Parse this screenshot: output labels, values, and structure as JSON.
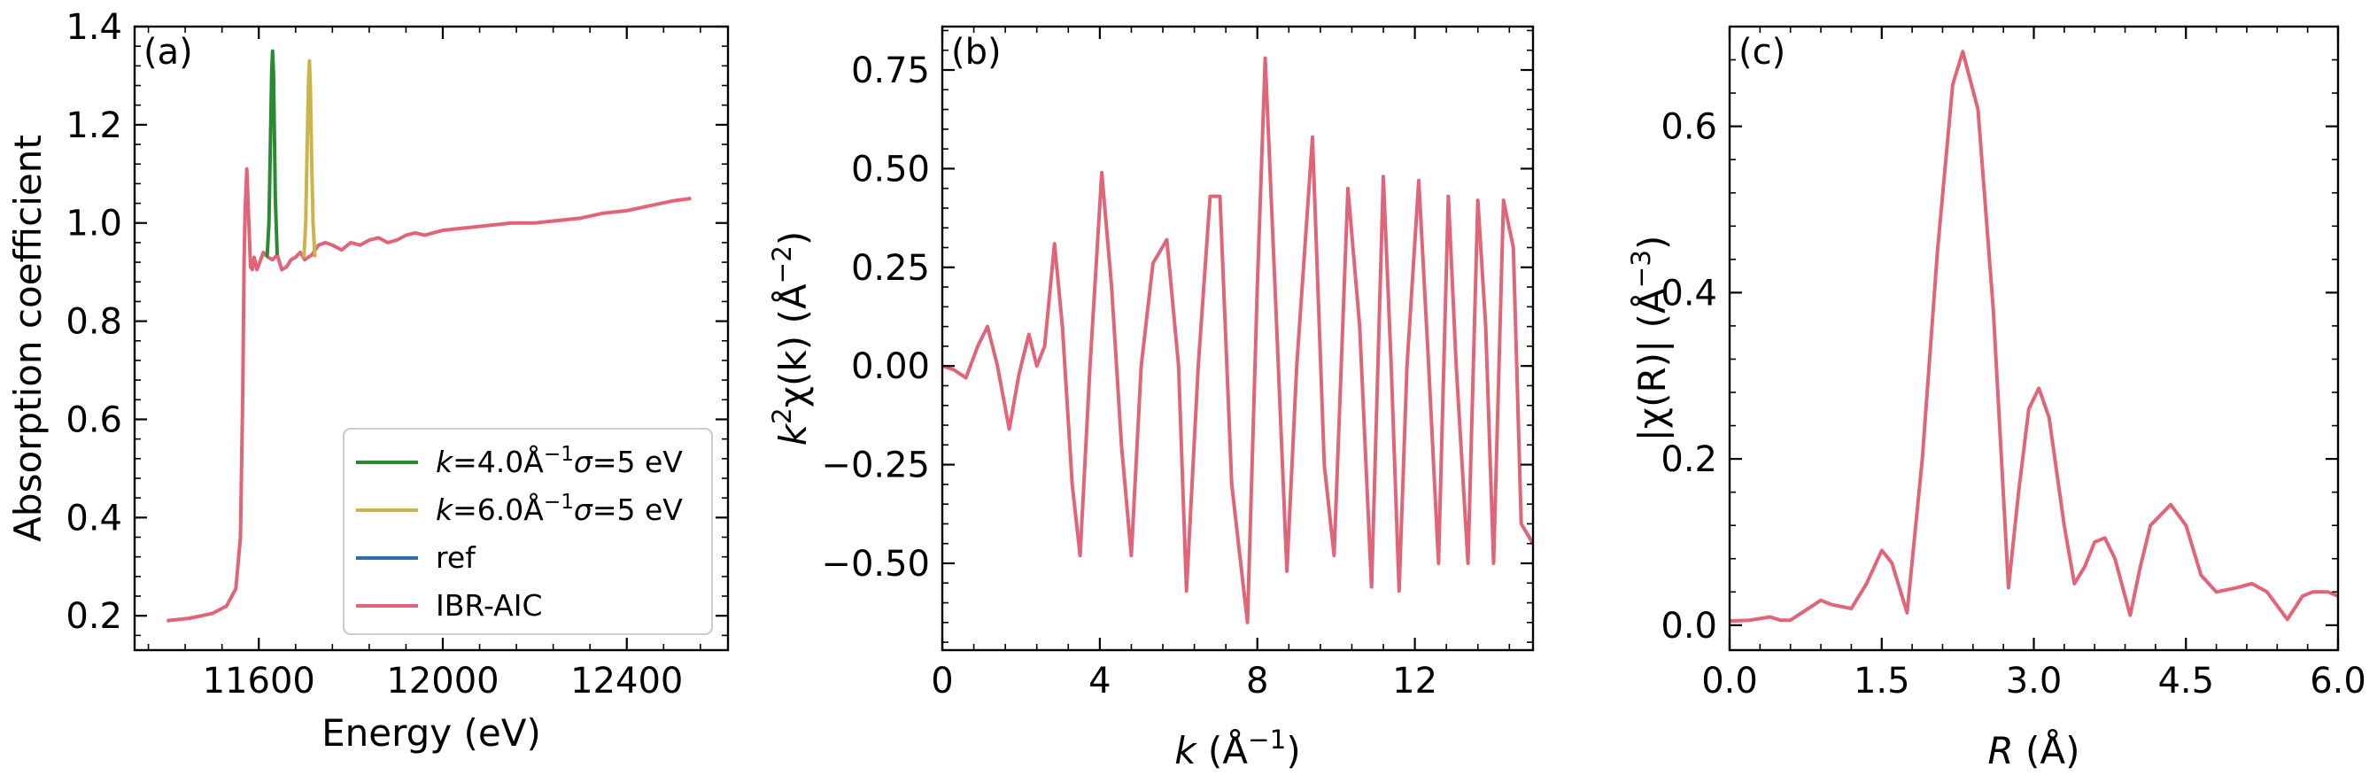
{
  "colors": {
    "green": "#2a8a34",
    "olive": "#cbb54a",
    "blue": "#2e6fad",
    "pink": "#e06579"
  },
  "chart_data": [
    {
      "type": "line",
      "panel": "(a)",
      "xlabel": "Energy (eV)",
      "ylabel": "Absorption coefficient",
      "xlim": [
        11330,
        12620
      ],
      "ylim": [
        0.13,
        1.4
      ],
      "xticks": [
        11600,
        12000,
        12400
      ],
      "xtick_labels": [
        "11600",
        "12000",
        "12400"
      ],
      "yticks": [
        0.2,
        0.4,
        0.6,
        0.8,
        1.0,
        1.2,
        1.4
      ],
      "ytick_labels": [
        "0.2",
        "0.4",
        "0.6",
        "0.8",
        "1.0",
        "1.2",
        "1.4"
      ],
      "legend": {
        "placement": "lower right",
        "entries": [
          {
            "label": "k=4.0Å⁻¹σ=5 eV",
            "color": "#2a8a34",
            "italic_k": true
          },
          {
            "label": "k=6.0Å⁻¹σ=5 eV",
            "color": "#cbb54a",
            "italic_k": true
          },
          {
            "label": "ref",
            "color": "#2e6fad"
          },
          {
            "label": "IBR-AIC",
            "color": "#e06579"
          }
        ]
      },
      "series": [
        {
          "name": "IBR-AIC",
          "color": "#e06579",
          "x": [
            11400,
            11450,
            11500,
            11530,
            11550,
            11560,
            11565,
            11568,
            11570,
            11574,
            11578,
            11582,
            11586,
            11590,
            11596,
            11602,
            11610,
            11620,
            11630,
            11640,
            11650,
            11660,
            11670,
            11680,
            11690,
            11700,
            11715,
            11730,
            11745,
            11760,
            11780,
            11800,
            11820,
            11840,
            11860,
            11880,
            11900,
            11920,
            11940,
            11960,
            11980,
            12000,
            12050,
            12100,
            12150,
            12200,
            12250,
            12300,
            12350,
            12400,
            12450,
            12500,
            12540
          ],
          "y": [
            0.19,
            0.195,
            0.205,
            0.22,
            0.255,
            0.36,
            0.65,
            0.92,
            1.02,
            1.11,
            1.01,
            0.91,
            0.905,
            0.93,
            0.905,
            0.92,
            0.94,
            0.93,
            0.925,
            0.935,
            0.905,
            0.91,
            0.925,
            0.93,
            0.94,
            0.925,
            0.935,
            0.955,
            0.96,
            0.955,
            0.945,
            0.96,
            0.955,
            0.965,
            0.97,
            0.96,
            0.965,
            0.975,
            0.98,
            0.975,
            0.98,
            0.985,
            0.99,
            0.995,
            1.0,
            1.0,
            1.005,
            1.01,
            1.02,
            1.025,
            1.035,
            1.045,
            1.05
          ]
        },
        {
          "name": "k=4.0Å⁻¹σ=5 eV",
          "color": "#2a8a34",
          "x": [
            11618,
            11622,
            11626,
            11628,
            11630,
            11632,
            11636,
            11640
          ],
          "y": [
            0.93,
            1.0,
            1.2,
            1.31,
            1.35,
            1.3,
            1.05,
            0.935
          ]
        },
        {
          "name": "k=6.0Å⁻¹σ=5 eV",
          "color": "#cbb54a",
          "x": [
            11698,
            11702,
            11705,
            11708,
            11710,
            11712,
            11715,
            11718,
            11722
          ],
          "y": [
            0.93,
            1.0,
            1.15,
            1.28,
            1.33,
            1.28,
            1.12,
            1.0,
            0.93
          ]
        }
      ]
    },
    {
      "type": "line",
      "panel": "(b)",
      "xlabel": "k (Å⁻¹)",
      "ylabel": "k²χ(k) (Å⁻²)",
      "xlim": [
        0,
        15
      ],
      "ylim": [
        -0.72,
        0.86
      ],
      "xticks": [
        0,
        4,
        8,
        12
      ],
      "xtick_labels": [
        "0",
        "4",
        "8",
        "12"
      ],
      "yticks": [
        -0.5,
        -0.25,
        0,
        0.25,
        0.5,
        0.75
      ],
      "ytick_labels": [
        "−0.50",
        "−0.25",
        "0.00",
        "0.25",
        "0.50",
        "0.75"
      ],
      "series": [
        {
          "name": "IBR-AIC",
          "color": "#e06579",
          "x": [
            0,
            0.3,
            0.6,
            0.9,
            1.15,
            1.4,
            1.7,
            1.95,
            2.2,
            2.4,
            2.6,
            2.85,
            3.05,
            3.3,
            3.5,
            3.75,
            4.05,
            4.3,
            4.55,
            4.8,
            5.05,
            5.35,
            5.7,
            6.0,
            6.2,
            6.5,
            6.8,
            7.05,
            7.35,
            7.75,
            8.0,
            8.2,
            8.45,
            8.75,
            9.0,
            9.4,
            9.7,
            9.95,
            10.3,
            10.6,
            10.9,
            11.2,
            11.4,
            11.6,
            11.8,
            12.1,
            12.35,
            12.6,
            12.85,
            13.05,
            13.35,
            13.6,
            13.8,
            14.0,
            14.25,
            14.5,
            14.7,
            15.0
          ],
          "y": [
            0,
            -0.01,
            -0.03,
            0.05,
            0.1,
            0.0,
            -0.16,
            -0.02,
            0.08,
            0.0,
            0.05,
            0.31,
            0.1,
            -0.3,
            -0.48,
            0.0,
            0.49,
            0.2,
            -0.2,
            -0.48,
            0.0,
            0.26,
            0.32,
            0.0,
            -0.57,
            0.0,
            0.43,
            0.43,
            -0.3,
            -0.65,
            0.2,
            0.78,
            0.2,
            -0.52,
            0.0,
            0.58,
            -0.25,
            -0.48,
            0.45,
            0.1,
            -0.56,
            0.48,
            0.0,
            -0.57,
            0.0,
            0.47,
            0.0,
            -0.5,
            0.43,
            0.0,
            -0.5,
            0.42,
            0.1,
            -0.5,
            0.42,
            0.3,
            -0.4,
            -0.45
          ]
        }
      ]
    },
    {
      "type": "line",
      "panel": "(c)",
      "xlabel": "R (Å)",
      "ylabel": "|χ(R)| (Å⁻³)",
      "xlim": [
        0,
        6.0
      ],
      "ylim": [
        -0.03,
        0.72
      ],
      "xticks": [
        0,
        1.5,
        3.0,
        4.5,
        6.0
      ],
      "xtick_labels": [
        "0.0",
        "1.5",
        "3.0",
        "4.5",
        "6.0"
      ],
      "yticks": [
        0,
        0.2,
        0.4,
        0.6
      ],
      "ytick_labels": [
        "0.0",
        "0.2",
        "0.4",
        "0.6"
      ],
      "series": [
        {
          "name": "IBR-AIC",
          "color": "#e06579",
          "x": [
            0,
            0.2,
            0.4,
            0.5,
            0.6,
            0.75,
            0.9,
            1.0,
            1.2,
            1.35,
            1.5,
            1.6,
            1.75,
            1.9,
            2.05,
            2.2,
            2.3,
            2.45,
            2.6,
            2.75,
            2.85,
            2.95,
            3.05,
            3.15,
            3.3,
            3.4,
            3.5,
            3.6,
            3.7,
            3.8,
            3.95,
            4.05,
            4.15,
            4.35,
            4.5,
            4.65,
            4.8,
            5.0,
            5.15,
            5.3,
            5.5,
            5.65,
            5.75,
            5.9,
            6.0
          ],
          "y": [
            0.005,
            0.006,
            0.01,
            0.006,
            0.006,
            0.018,
            0.03,
            0.025,
            0.02,
            0.05,
            0.09,
            0.075,
            0.015,
            0.2,
            0.45,
            0.65,
            0.69,
            0.62,
            0.38,
            0.045,
            0.16,
            0.26,
            0.285,
            0.25,
            0.12,
            0.05,
            0.07,
            0.1,
            0.105,
            0.08,
            0.012,
            0.07,
            0.12,
            0.145,
            0.12,
            0.06,
            0.04,
            0.045,
            0.05,
            0.04,
            0.007,
            0.035,
            0.04,
            0.04,
            0.035
          ]
        }
      ]
    }
  ]
}
